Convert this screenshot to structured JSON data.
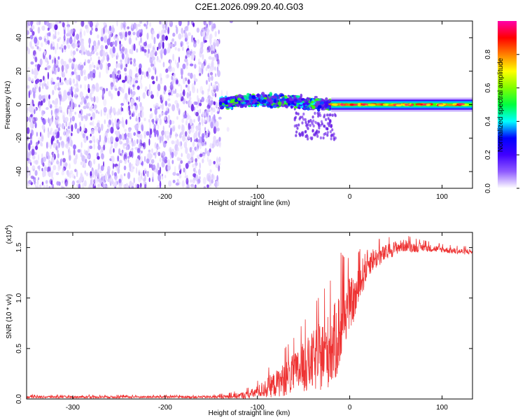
{
  "chart_data": [
    {
      "type": "heatmap",
      "title": "C2E1.2026.099.20.40.G03",
      "xlabel": "Height of straight line (km)",
      "ylabel": "Frequency (Hz)",
      "xlim": [
        -350,
        133
      ],
      "ylim": [
        -50,
        50
      ],
      "xticks": [
        -300,
        -200,
        -100,
        0,
        100
      ],
      "xtick_labels": [
        "-300",
        "-200",
        "-100",
        "0",
        "100"
      ],
      "yticks": [
        -40,
        -20,
        0,
        20,
        40
      ],
      "ytick_labels": [
        "-40",
        "-20",
        "0",
        "20",
        "40"
      ],
      "noise_region_km": [
        -350,
        -140
      ],
      "signal_band": {
        "turbulent_km": [
          -140,
          -20
        ],
        "turbulent_freq_hz": [
          -8,
          10
        ],
        "stable_km": [
          -20,
          133
        ],
        "stable_center_hz": 0,
        "stable_halfwidth_hz": 3
      },
      "colorbar": {
        "label": "Normalized spectral amplitude",
        "range": [
          0.0,
          1.0
        ],
        "ticks": [
          0.0,
          0.2,
          0.4,
          0.6,
          0.8
        ],
        "tick_labels": [
          "0.0",
          "0.2",
          "0.4",
          "0.6",
          "0.8"
        ],
        "colors": [
          "#ffffff",
          "#8f5bff",
          "#4000ff",
          "#0000ff",
          "#00ffff",
          "#00ff40",
          "#80ff00",
          "#ffff00",
          "#ff8000",
          "#ff0000",
          "#ff00aa"
        ]
      }
    },
    {
      "type": "line",
      "xlabel": "Height of straight line (km)",
      "ylabel": "SNR (10 * v/v)",
      "scale_label": "(x10",
      "scale_exp": "4",
      "scale_close": ")",
      "xlim": [
        -350,
        133
      ],
      "ylim": [
        0,
        1.65
      ],
      "xticks": [
        -300,
        -200,
        -100,
        0,
        100
      ],
      "xtick_labels": [
        "-300",
        "-200",
        "-100",
        "0",
        "100"
      ],
      "yticks": [
        0.0,
        0.5,
        1.0,
        1.5
      ],
      "ytick_labels": [
        "0.0",
        "0.5",
        "1.0",
        "1.5"
      ],
      "line_color": "#ee3333",
      "series": [
        {
          "name": "SNR",
          "x": [
            -350,
            -300,
            -250,
            -200,
            -150,
            -130,
            -110,
            -100,
            -90,
            -80,
            -70,
            -60,
            -50,
            -40,
            -30,
            -20,
            -15,
            -10,
            -5,
            0,
            5,
            10,
            15,
            20,
            25,
            30,
            40,
            50,
            60,
            70,
            80,
            100,
            120,
            133
          ],
          "values": [
            0.02,
            0.02,
            0.02,
            0.02,
            0.02,
            0.025,
            0.04,
            0.07,
            0.11,
            0.15,
            0.2,
            0.25,
            0.31,
            0.37,
            0.43,
            0.5,
            0.58,
            0.7,
            0.85,
            0.95,
            0.98,
            1.1,
            1.25,
            1.35,
            1.38,
            1.4,
            1.45,
            1.5,
            1.52,
            1.5,
            1.5,
            1.48,
            1.46,
            1.46
          ],
          "noise_amplitude": [
            0.012,
            0.012,
            0.012,
            0.012,
            0.012,
            0.02,
            0.04,
            0.06,
            0.1,
            0.13,
            0.17,
            0.2,
            0.25,
            0.3,
            0.35,
            0.38,
            0.4,
            0.42,
            0.3,
            0.25,
            0.22,
            0.2,
            0.18,
            0.14,
            0.12,
            0.1,
            0.08,
            0.07,
            0.06,
            0.05,
            0.04,
            0.03,
            0.03,
            0.03
          ]
        }
      ]
    }
  ]
}
